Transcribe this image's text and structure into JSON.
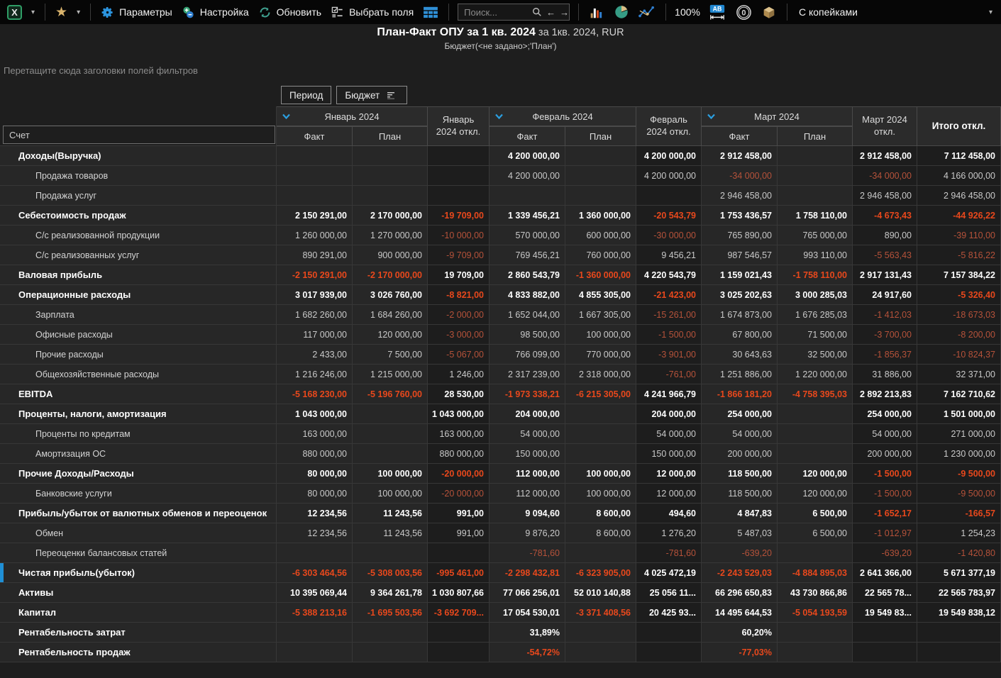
{
  "toolbar": {
    "excel_glyph": "X",
    "params_label": "Параметры",
    "settings_label": "Настройка",
    "refresh_label": "Обновить",
    "choose_fields_label": "Выбрать поля",
    "search_placeholder": "Поиск...",
    "zoom_level": "100%",
    "ab_glyph": "AB",
    "zero_glyph": "0",
    "kopecks_label": "С копейками"
  },
  "header": {
    "title_main": "План-Факт ОПУ за 1 кв. 2024",
    "title_suffix": " за 1кв. 2024, RUR",
    "subtitle": "Бюджет(<не задано>;'План')"
  },
  "filter_hint": "Перетащите сюда заголовки полей фильтров",
  "pivot_fields": [
    "Период",
    "Бюджет"
  ],
  "colors": {
    "accent_blue": "#1f8fd5",
    "negative_bold": "#e8481c",
    "negative_muted": "#b5523a",
    "positive_bold": "#ffffff"
  },
  "table": {
    "row_header_label": "Счет",
    "months": [
      {
        "name": "Январь 2024",
        "fact": "Факт",
        "plan": "План",
        "offset": "Январь 2024 откл."
      },
      {
        "name": "Февраль 2024",
        "fact": "Факт",
        "plan": "План",
        "offset": "Февраль 2024 откл."
      },
      {
        "name": "Март 2024",
        "fact": "Факт",
        "plan": "План",
        "offset": "Март 2024 откл."
      }
    ],
    "total_label": "Итого откл.",
    "rows": [
      {
        "label": "Доходы(Выручка)",
        "level": "group",
        "values": [
          "",
          "",
          "",
          "4 200 000,00",
          "",
          "4 200 000,00",
          "2 912 458,00",
          "",
          "2 912 458,00",
          "7 112 458,00"
        ]
      },
      {
        "label": "Продажа товаров",
        "level": "child",
        "values": [
          "",
          "",
          "",
          "4 200 000,00",
          "",
          "4 200 000,00",
          "-34 000,00",
          "",
          "-34 000,00",
          "4 166 000,00"
        ]
      },
      {
        "label": "Продажа услуг",
        "level": "child",
        "values": [
          "",
          "",
          "",
          "",
          "",
          "",
          "2 946 458,00",
          "",
          "2 946 458,00",
          "2 946 458,00"
        ]
      },
      {
        "label": "Себестоимость продаж",
        "level": "group",
        "values": [
          "2 150 291,00",
          "2 170 000,00",
          "-19 709,00",
          "1 339 456,21",
          "1 360 000,00",
          "-20 543,79",
          "1 753 436,57",
          "1 758 110,00",
          "-4 673,43",
          "-44 926,22"
        ]
      },
      {
        "label": "С/с реализованной продукции",
        "level": "child",
        "values": [
          "1 260 000,00",
          "1 270 000,00",
          "-10 000,00",
          "570 000,00",
          "600 000,00",
          "-30 000,00",
          "765 890,00",
          "765 000,00",
          "890,00",
          "-39 110,00"
        ]
      },
      {
        "label": "С/с реализованных услуг",
        "level": "child",
        "values": [
          "890 291,00",
          "900 000,00",
          "-9 709,00",
          "769 456,21",
          "760 000,00",
          "9 456,21",
          "987 546,57",
          "993 110,00",
          "-5 563,43",
          "-5 816,22"
        ]
      },
      {
        "label": "Валовая прибыль",
        "level": "group",
        "values": [
          "-2 150 291,00",
          "-2 170 000,00",
          "19 709,00",
          "2 860 543,79",
          "-1 360 000,00",
          "4 220 543,79",
          "1 159 021,43",
          "-1 758 110,00",
          "2 917 131,43",
          "7 157 384,22"
        ]
      },
      {
        "label": "Операционные расходы",
        "level": "group",
        "values": [
          "3 017 939,00",
          "3 026 760,00",
          "-8 821,00",
          "4 833 882,00",
          "4 855 305,00",
          "-21 423,00",
          "3 025 202,63",
          "3 000 285,03",
          "24 917,60",
          "-5 326,40"
        ]
      },
      {
        "label": "Зарплата",
        "level": "child",
        "values": [
          "1 682 260,00",
          "1 684 260,00",
          "-2 000,00",
          "1 652 044,00",
          "1 667 305,00",
          "-15 261,00",
          "1 674 873,00",
          "1 676 285,03",
          "-1 412,03",
          "-18 673,03"
        ]
      },
      {
        "label": "Офисные расходы",
        "level": "child",
        "values": [
          "117 000,00",
          "120 000,00",
          "-3 000,00",
          "98 500,00",
          "100 000,00",
          "-1 500,00",
          "67 800,00",
          "71 500,00",
          "-3 700,00",
          "-8 200,00"
        ]
      },
      {
        "label": "Прочие расходы",
        "level": "child",
        "values": [
          "2 433,00",
          "7 500,00",
          "-5 067,00",
          "766 099,00",
          "770 000,00",
          "-3 901,00",
          "30 643,63",
          "32 500,00",
          "-1 856,37",
          "-10 824,37"
        ]
      },
      {
        "label": "Общехозяйственные расходы",
        "level": "child",
        "values": [
          "1 216 246,00",
          "1 215 000,00",
          "1 246,00",
          "2 317 239,00",
          "2 318 000,00",
          "-761,00",
          "1 251 886,00",
          "1 220 000,00",
          "31 886,00",
          "32 371,00"
        ]
      },
      {
        "label": "EBITDA",
        "level": "group",
        "values": [
          "-5 168 230,00",
          "-5 196 760,00",
          "28 530,00",
          "-1 973 338,21",
          "-6 215 305,00",
          "4 241 966,79",
          "-1 866 181,20",
          "-4 758 395,03",
          "2 892 213,83",
          "7 162 710,62"
        ]
      },
      {
        "label": "Проценты, налоги, амортизация",
        "level": "group",
        "values": [
          "1 043 000,00",
          "",
          "1 043 000,00",
          "204 000,00",
          "",
          "204 000,00",
          "254 000,00",
          "",
          "254 000,00",
          "1 501 000,00"
        ]
      },
      {
        "label": "Проценты по кредитам",
        "level": "child",
        "values": [
          "163 000,00",
          "",
          "163 000,00",
          "54 000,00",
          "",
          "54 000,00",
          "54 000,00",
          "",
          "54 000,00",
          "271 000,00"
        ]
      },
      {
        "label": "Амортизация ОС",
        "level": "child",
        "values": [
          "880 000,00",
          "",
          "880 000,00",
          "150 000,00",
          "",
          "150 000,00",
          "200 000,00",
          "",
          "200 000,00",
          "1 230 000,00"
        ]
      },
      {
        "label": "Прочие Доходы/Расходы",
        "level": "group",
        "values": [
          "80 000,00",
          "100 000,00",
          "-20 000,00",
          "112 000,00",
          "100 000,00",
          "12 000,00",
          "118 500,00",
          "120 000,00",
          "-1 500,00",
          "-9 500,00"
        ]
      },
      {
        "label": "Банковские услуги",
        "level": "child",
        "values": [
          "80 000,00",
          "100 000,00",
          "-20 000,00",
          "112 000,00",
          "100 000,00",
          "12 000,00",
          "118 500,00",
          "120 000,00",
          "-1 500,00",
          "-9 500,00"
        ]
      },
      {
        "label": "Прибыль/убыток от валютных обменов и переоценок",
        "level": "group",
        "values": [
          "12 234,56",
          "11 243,56",
          "991,00",
          "9 094,60",
          "8 600,00",
          "494,60",
          "4 847,83",
          "6 500,00",
          "-1 652,17",
          "-166,57"
        ]
      },
      {
        "label": "Обмен",
        "level": "child",
        "values": [
          "12 234,56",
          "11 243,56",
          "991,00",
          "9 876,20",
          "8 600,00",
          "1 276,20",
          "5 487,03",
          "6 500,00",
          "-1 012,97",
          "1 254,23"
        ]
      },
      {
        "label": "Переоценки балансовых статей",
        "level": "child",
        "values": [
          "",
          "",
          "",
          "-781,60",
          "",
          "-781,60",
          "-639,20",
          "",
          "-639,20",
          "-1 420,80"
        ]
      },
      {
        "label": "Чистая прибыль(убыток)",
        "level": "group",
        "selected": true,
        "values": [
          "-6 303 464,56",
          "-5 308 003,56",
          "-995 461,00",
          "-2 298 432,81",
          "-6 323 905,00",
          "4 025 472,19",
          "-2 243 529,03",
          "-4 884 895,03",
          "2 641 366,00",
          "5 671 377,19"
        ]
      },
      {
        "label": "Активы",
        "level": "group",
        "values": [
          "10 395 069,44",
          "9 364 261,78",
          "1 030 807,66",
          "77 066 256,01",
          "52 010 140,88",
          "25 056 11...",
          "66 296 650,83",
          "43 730 866,86",
          "22 565 78...",
          "22 565 783,97"
        ]
      },
      {
        "label": "Капитал",
        "level": "group",
        "values": [
          "-5 388 213,16",
          "-1 695 503,56",
          "-3 692 709...",
          "17 054 530,01",
          "-3 371 408,56",
          "20 425 93...",
          "14 495 644,53",
          "-5 054 193,59",
          "19 549 83...",
          "19 549 838,12"
        ]
      },
      {
        "label": "Рентабельность затрат",
        "level": "group",
        "values": [
          "",
          "",
          "",
          "31,89%",
          "",
          "",
          "60,20%",
          "",
          "",
          ""
        ]
      },
      {
        "label": "Рентабельность продаж",
        "level": "group",
        "values": [
          "",
          "",
          "",
          "-54,72%",
          "",
          "",
          "-77,03%",
          "",
          "",
          ""
        ]
      }
    ]
  }
}
